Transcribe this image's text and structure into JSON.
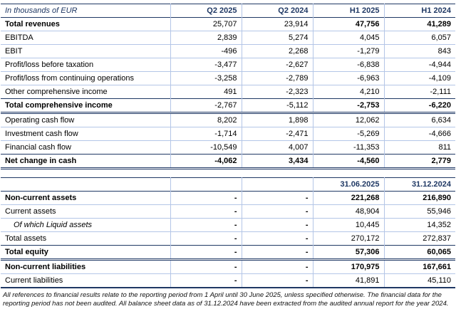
{
  "meta": {
    "accent_color": "#1f3864",
    "grid_color": "#b4c6e7"
  },
  "header": {
    "label": "In thousands of EUR",
    "cols": [
      "Q2 2025",
      "Q2 2024",
      "H1 2025",
      "H1 2024"
    ]
  },
  "income_rows": [
    {
      "label": "Total revenues",
      "values": [
        "25,707",
        "23,914",
        "47,756",
        "41,289"
      ],
      "label_bold": true,
      "value_bold": [
        false,
        false,
        true,
        true
      ],
      "bottom": "light"
    },
    {
      "label": "EBITDA",
      "values": [
        "2,839",
        "5,274",
        "4,045",
        "6,057"
      ],
      "bottom": "light"
    },
    {
      "label": "EBIT",
      "values": [
        "-496",
        "2,268",
        "-1,279",
        "843"
      ],
      "bottom": "light"
    },
    {
      "label": "Profit/loss before taxation",
      "values": [
        "-3,477",
        "-2,627",
        "-6,838",
        "-4,944"
      ],
      "bottom": "light"
    },
    {
      "label": "Profit/loss from continuing operations",
      "values": [
        "-3,258",
        "-2,789",
        "-6,963",
        "-4,109"
      ],
      "bottom": "light"
    },
    {
      "label": "Other comprehensive income",
      "values": [
        "491",
        "-2,323",
        "4,210",
        "-2,111"
      ],
      "bottom": "navy"
    },
    {
      "label": "Total comprehensive income",
      "values": [
        "-2,767",
        "-5,112",
        "-2,753",
        "-6,220"
      ],
      "label_bold": true,
      "value_bold": [
        false,
        false,
        true,
        true
      ],
      "bottom": "double"
    },
    {
      "label": "Operating cash flow",
      "values": [
        "8,202",
        "1,898",
        "12,062",
        "6,634"
      ],
      "bottom": "light"
    },
    {
      "label": "Investment cash flow",
      "values": [
        "-1,714",
        "-2,471",
        "-5,269",
        "-4,666"
      ],
      "bottom": "light"
    },
    {
      "label": "Financial cash flow",
      "values": [
        "-10,549",
        "4,007",
        "-11,353",
        "811"
      ],
      "bottom": "navy"
    },
    {
      "label": "Net change in cash",
      "values": [
        "-4,062",
        "3,434",
        "-4,560",
        "2,779"
      ],
      "label_bold": true,
      "value_bold": [
        true,
        true,
        true,
        true
      ],
      "bottom": "double"
    }
  ],
  "balance_header": {
    "cols": [
      "",
      "",
      "31.06.2025",
      "31.12.2024"
    ]
  },
  "balance_rows": [
    {
      "label": "Non-current assets",
      "values": [
        "-",
        "-",
        "221,268",
        "216,890"
      ],
      "label_bold": true,
      "value_bold": [
        true,
        true,
        true,
        true
      ],
      "bottom": "light"
    },
    {
      "label": "Current assets",
      "values": [
        "-",
        "-",
        "48,904",
        "55,946"
      ],
      "value_bold": [
        true,
        true,
        false,
        false
      ],
      "bottom": "light"
    },
    {
      "label": "Of which Liquid assets",
      "values": [
        "-",
        "-",
        "10,445",
        "14,352"
      ],
      "label_italic": true,
      "indent": true,
      "value_bold": [
        true,
        true,
        false,
        false
      ],
      "bottom": "light"
    },
    {
      "label": "Total assets",
      "values": [
        "-",
        "-",
        "270,172",
        "272,837"
      ],
      "value_bold": [
        true,
        true,
        false,
        false
      ],
      "bottom": "navy"
    },
    {
      "label": "Total equity",
      "values": [
        "-",
        "-",
        "57,306",
        "60,065"
      ],
      "label_bold": true,
      "value_bold": [
        true,
        true,
        true,
        true
      ],
      "bottom": "double"
    },
    {
      "label": "Non-current liabilities",
      "values": [
        "-",
        "-",
        "170,975",
        "167,661"
      ],
      "label_bold": true,
      "value_bold": [
        true,
        true,
        true,
        true
      ],
      "bottom": "light"
    },
    {
      "label": "Current liabilities",
      "values": [
        "-",
        "-",
        "41,891",
        "45,110"
      ],
      "value_bold": [
        true,
        true,
        false,
        false
      ],
      "bottom": "thick"
    }
  ],
  "footnote": "All references to financial results relate to the reporting period from 1 April until 30 June 2025, unless specified otherwise. The financial data for the reporting period has not been audited.  All balance sheet data as of 31.12.2024 have been extracted from the audited annual report for the year 2024."
}
